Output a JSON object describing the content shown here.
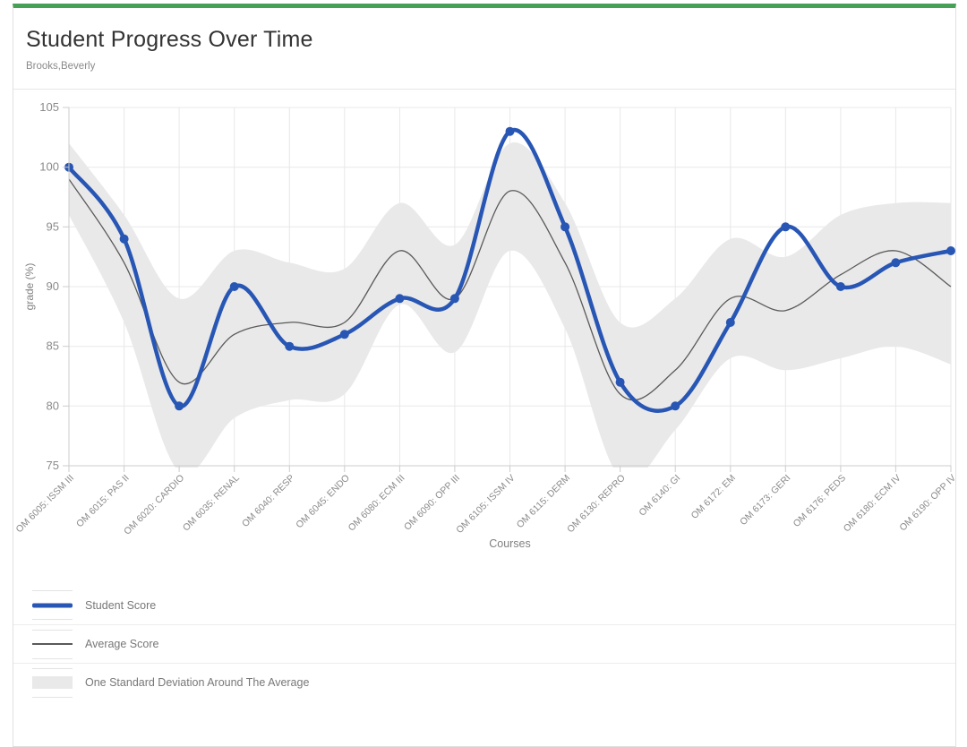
{
  "header": {
    "title": "Student Progress Over Time",
    "subtitle": "Brooks,Beverly"
  },
  "theme": {
    "top_bar_color": "#46a055"
  },
  "chart_data": {
    "type": "line",
    "title": "Student Progress Over Time",
    "xlabel": "Courses",
    "ylabel": "grade (%)",
    "ylim": [
      75,
      105
    ],
    "yticks": [
      75,
      80,
      85,
      90,
      95,
      100,
      105
    ],
    "grid": true,
    "legend_position": "bottom",
    "categories": [
      "OM 6005: ISSM III",
      "OM 6015: PAS II",
      "OM 6020: CARDIO",
      "OM 6035: RENAL",
      "OM 6040: RESP",
      "OM 6045: ENDO",
      "OM 6080: ECM III",
      "OM 6090: OPP III",
      "OM 6105: ISSM IV",
      "OM 6115: DERM",
      "OM 6130: REPRO",
      "OM 6140: GI",
      "OM 6172: EM",
      "OM 6173: GERI",
      "OM 6176: PEDS",
      "OM 6180: ECM IV",
      "OM 6190: OPP IV"
    ],
    "series": [
      {
        "name": "Student Score",
        "type": "line",
        "color": "#2856b4",
        "width": 4.5,
        "markers": true,
        "values": [
          100,
          94,
          80,
          90,
          85,
          86,
          89,
          89,
          103,
          95,
          82,
          80,
          87,
          95,
          90,
          92,
          93
        ]
      },
      {
        "name": "Average Score",
        "type": "line",
        "color": "#5a5a5a",
        "width": 1.3,
        "markers": false,
        "values": [
          99,
          92,
          82,
          86,
          87,
          87,
          93,
          89,
          98,
          92,
          81,
          83,
          89,
          88,
          91,
          93,
          90
        ]
      },
      {
        "name": "One Standard Deviation Around The Average",
        "type": "band",
        "color": "#e9e9e9",
        "upper": [
          102,
          96,
          89,
          93,
          92,
          91.5,
          97,
          93.5,
          102,
          97,
          87,
          89,
          94,
          92.5,
          96,
          97,
          97
        ],
        "lower": [
          96,
          87,
          74.5,
          79,
          80.5,
          81,
          88.5,
          84.5,
          93,
          86.5,
          74,
          78,
          84,
          83,
          84,
          85,
          83.5
        ]
      }
    ]
  }
}
